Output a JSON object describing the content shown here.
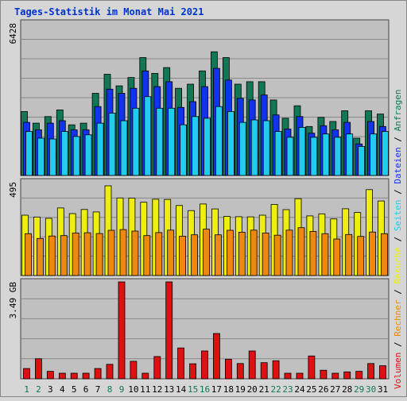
{
  "chart_data": {
    "type": "bar",
    "title": "Tages-Statistik im Monat Mai 2021",
    "days": [
      "1",
      "2",
      "3",
      "4",
      "5",
      "6",
      "7",
      "8",
      "9",
      "10",
      "11",
      "12",
      "13",
      "14",
      "15",
      "16",
      "17",
      "18",
      "19",
      "20",
      "21",
      "22",
      "23",
      "24",
      "25",
      "26",
      "27",
      "28",
      "29",
      "30",
      "31"
    ],
    "weekend_days": [
      "1",
      "2",
      "8",
      "9",
      "15",
      "16",
      "22",
      "23",
      "29",
      "30"
    ],
    "panels": [
      {
        "id": "requests",
        "ymax_label": "6428",
        "ylim": [
          0,
          6428
        ],
        "series": [
          {
            "name": "Anfragen",
            "color": "#117755",
            "values": [
              2695,
              2205,
              2485,
              2765,
              2135,
              2205,
              3465,
              4270,
              3780,
              4130,
              4970,
              4305,
              4550,
              3675,
              3850,
              4410,
              5215,
              4970,
              3850,
              3955,
              3955,
              3185,
              2415,
              2940,
              2065,
              2450,
              2275,
              2730,
              1575,
              2730,
              2590
            ]
          },
          {
            "name": "Dateien",
            "color": "#1133ee",
            "values": [
              2240,
              1925,
              2205,
              2310,
              1925,
              1925,
              2905,
              3640,
              3465,
              3675,
              4410,
              3745,
              3955,
              2870,
              3115,
              3745,
              4515,
              4025,
              3255,
              3185,
              3395,
              2555,
              1960,
              2485,
              1785,
              2100,
              1925,
              2240,
              1330,
              2275,
              2065
            ]
          },
          {
            "name": "Seiten",
            "color": "#22ccee",
            "values": [
              1855,
              1575,
              1540,
              1855,
              1645,
              1715,
              2205,
              2625,
              2310,
              2835,
              3325,
              2835,
              2835,
              2135,
              2485,
              2415,
              2905,
              2695,
              2240,
              2345,
              2310,
              1855,
              1610,
              2030,
              1610,
              1750,
              1610,
              1750,
              1225,
              1750,
              1855
            ]
          }
        ]
      },
      {
        "id": "visits",
        "ymax_label": "495",
        "ylim": [
          0,
          495
        ],
        "series": [
          {
            "name": "Besuche",
            "color": "#eeee11",
            "values": [
              319,
              309,
              302,
              357,
              327,
              349,
              336,
              474,
              410,
              409,
              387,
              403,
              402,
              370,
              343,
              378,
              352,
              312,
              311,
              310,
              319,
              376,
              348,
              406,
              315,
              326,
              299,
              353,
              333,
              454,
              394
            ]
          },
          {
            "name": "Rechner",
            "color": "#ee8811",
            "values": [
              221,
              196,
              209,
              211,
              225,
              226,
              222,
              239,
              243,
              235,
              211,
              227,
              240,
              208,
              215,
              245,
              215,
              239,
              229,
              240,
              225,
              213,
              240,
              253,
              233,
              221,
              193,
              217,
              207,
              230,
              221
            ]
          }
        ]
      },
      {
        "id": "volume",
        "ymax_label": "3.49 GB",
        "ylim": [
          0,
          3.49
        ],
        "series": [
          {
            "name": "Volumen",
            "color": "#dd1111",
            "values": [
              0.37,
              0.72,
              0.27,
              0.2,
              0.2,
              0.2,
              0.37,
              0.52,
              3.49,
              0.63,
              0.2,
              0.8,
              3.49,
              1.11,
              0.54,
              1.0,
              1.63,
              0.7,
              0.55,
              1.0,
              0.58,
              0.65,
              0.2,
              0.2,
              0.82,
              0.31,
              0.2,
              0.25,
              0.27,
              0.55,
              0.47
            ]
          }
        ]
      }
    ],
    "legend_text_right": [
      "Anfragen",
      "Dateien",
      "Seiten",
      "Besuche",
      "Rechner",
      "Volumen"
    ],
    "legend_separator": " / "
  },
  "colors": {
    "background": "#d6d6d6",
    "plot_bg": "#c0c0c0",
    "grid": "#888888",
    "title": "#0033cc",
    "weekday_label": "#000000",
    "weekend_label": "#117755"
  }
}
